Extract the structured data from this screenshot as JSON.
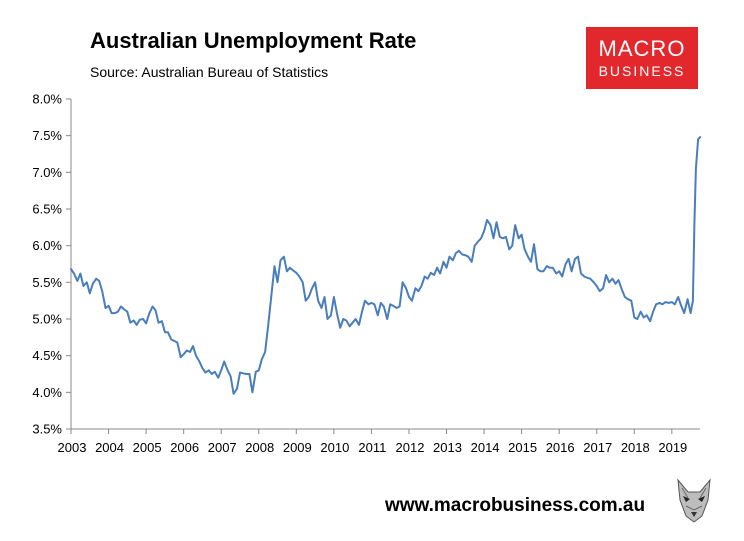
{
  "header": {
    "title": "Australian Unemployment Rate",
    "subtitle": "Source: Australian Bureau of Statistics"
  },
  "logo": {
    "line1": "MACRO",
    "line2": "BUSINESS",
    "bg_color": "#e3282d"
  },
  "footer": {
    "url": "www.macrobusiness.com.au",
    "icon": "wolf-logo-icon"
  },
  "chart_data": {
    "type": "line",
    "title": "Australian Unemployment Rate",
    "subtitle": "Source: Australian Bureau of Statistics",
    "xlabel": "",
    "ylabel": "",
    "x_tick_labels": [
      "2003",
      "2004",
      "2005",
      "2006",
      "2007",
      "2008",
      "2009",
      "2010",
      "2011",
      "2012",
      "2013",
      "2014",
      "2015",
      "2016",
      "2017",
      "2018",
      "2019"
    ],
    "y_tick_labels": [
      "3.5%",
      "4.0%",
      "4.5%",
      "5.0%",
      "5.5%",
      "6.0%",
      "6.5%",
      "7.0%",
      "7.5%",
      "8.0%"
    ],
    "ylim": [
      3.5,
      8.0
    ],
    "xlim": [
      2003.0,
      2019.75
    ],
    "grid": false,
    "legend": "none",
    "series_color": "#4a7ebb",
    "series": [
      {
        "values": [
          [
            2003.0,
            5.68
          ],
          [
            2003.08,
            5.62
          ],
          [
            2003.17,
            5.52
          ],
          [
            2003.25,
            5.62
          ],
          [
            2003.33,
            5.45
          ],
          [
            2003.42,
            5.5
          ],
          [
            2003.5,
            5.35
          ],
          [
            2003.58,
            5.48
          ],
          [
            2003.67,
            5.55
          ],
          [
            2003.75,
            5.52
          ],
          [
            2003.83,
            5.38
          ],
          [
            2003.92,
            5.15
          ],
          [
            2004.0,
            5.18
          ],
          [
            2004.08,
            5.08
          ],
          [
            2004.17,
            5.08
          ],
          [
            2004.25,
            5.1
          ],
          [
            2004.33,
            5.17
          ],
          [
            2004.42,
            5.13
          ],
          [
            2004.5,
            5.1
          ],
          [
            2004.58,
            4.95
          ],
          [
            2004.67,
            4.98
          ],
          [
            2004.75,
            4.92
          ],
          [
            2004.83,
            4.99
          ],
          [
            2004.92,
            5.0
          ],
          [
            2005.0,
            4.94
          ],
          [
            2005.08,
            5.07
          ],
          [
            2005.17,
            5.17
          ],
          [
            2005.25,
            5.12
          ],
          [
            2005.33,
            4.95
          ],
          [
            2005.42,
            4.97
          ],
          [
            2005.5,
            4.82
          ],
          [
            2005.58,
            4.82
          ],
          [
            2005.67,
            4.72
          ],
          [
            2005.75,
            4.7
          ],
          [
            2005.83,
            4.68
          ],
          [
            2005.92,
            4.48
          ],
          [
            2006.0,
            4.52
          ],
          [
            2006.08,
            4.57
          ],
          [
            2006.17,
            4.55
          ],
          [
            2006.25,
            4.63
          ],
          [
            2006.33,
            4.5
          ],
          [
            2006.42,
            4.42
          ],
          [
            2006.5,
            4.33
          ],
          [
            2006.58,
            4.27
          ],
          [
            2006.67,
            4.3
          ],
          [
            2006.75,
            4.25
          ],
          [
            2006.83,
            4.28
          ],
          [
            2006.92,
            4.2
          ],
          [
            2007.0,
            4.3
          ],
          [
            2007.08,
            4.42
          ],
          [
            2007.17,
            4.3
          ],
          [
            2007.25,
            4.22
          ],
          [
            2007.33,
            3.98
          ],
          [
            2007.42,
            4.05
          ],
          [
            2007.5,
            4.27
          ],
          [
            2007.58,
            4.26
          ],
          [
            2007.67,
            4.25
          ],
          [
            2007.75,
            4.25
          ],
          [
            2007.83,
            4.0
          ],
          [
            2007.92,
            4.28
          ],
          [
            2008.0,
            4.3
          ],
          [
            2008.08,
            4.45
          ],
          [
            2008.17,
            4.55
          ],
          [
            2008.25,
            4.9
          ],
          [
            2008.33,
            5.3
          ],
          [
            2008.42,
            5.72
          ],
          [
            2008.5,
            5.5
          ],
          [
            2008.58,
            5.8
          ],
          [
            2008.67,
            5.85
          ],
          [
            2008.75,
            5.65
          ],
          [
            2008.83,
            5.7
          ],
          [
            2008.92,
            5.66
          ],
          [
            2009.0,
            5.63
          ],
          [
            2009.08,
            5.58
          ],
          [
            2009.17,
            5.5
          ],
          [
            2009.25,
            5.25
          ],
          [
            2009.33,
            5.3
          ],
          [
            2009.42,
            5.42
          ],
          [
            2009.5,
            5.5
          ],
          [
            2009.58,
            5.25
          ],
          [
            2009.67,
            5.15
          ],
          [
            2009.75,
            5.3
          ],
          [
            2009.83,
            5.0
          ],
          [
            2009.92,
            5.05
          ],
          [
            2010.0,
            5.3
          ],
          [
            2010.08,
            5.08
          ],
          [
            2010.17,
            4.88
          ],
          [
            2010.25,
            5.0
          ],
          [
            2010.33,
            4.98
          ],
          [
            2010.42,
            4.9
          ],
          [
            2010.5,
            4.95
          ],
          [
            2010.58,
            5.0
          ],
          [
            2010.67,
            4.92
          ],
          [
            2010.75,
            5.1
          ],
          [
            2010.83,
            5.25
          ],
          [
            2010.92,
            5.2
          ],
          [
            2011.0,
            5.22
          ],
          [
            2011.08,
            5.2
          ],
          [
            2011.17,
            5.05
          ],
          [
            2011.25,
            5.22
          ],
          [
            2011.33,
            5.17
          ],
          [
            2011.42,
            5.0
          ],
          [
            2011.5,
            5.2
          ],
          [
            2011.58,
            5.18
          ],
          [
            2011.67,
            5.15
          ],
          [
            2011.75,
            5.17
          ],
          [
            2011.83,
            5.5
          ],
          [
            2011.92,
            5.42
          ],
          [
            2012.0,
            5.3
          ],
          [
            2012.08,
            5.25
          ],
          [
            2012.17,
            5.42
          ],
          [
            2012.25,
            5.38
          ],
          [
            2012.33,
            5.45
          ],
          [
            2012.42,
            5.58
          ],
          [
            2012.5,
            5.55
          ],
          [
            2012.58,
            5.63
          ],
          [
            2012.67,
            5.6
          ],
          [
            2012.75,
            5.7
          ],
          [
            2012.83,
            5.62
          ],
          [
            2012.92,
            5.78
          ],
          [
            2013.0,
            5.7
          ],
          [
            2013.08,
            5.85
          ],
          [
            2013.17,
            5.8
          ],
          [
            2013.25,
            5.9
          ],
          [
            2013.33,
            5.93
          ],
          [
            2013.42,
            5.88
          ],
          [
            2013.5,
            5.87
          ],
          [
            2013.58,
            5.85
          ],
          [
            2013.67,
            5.78
          ],
          [
            2013.75,
            6.0
          ],
          [
            2013.83,
            6.05
          ],
          [
            2013.92,
            6.1
          ],
          [
            2014.0,
            6.2
          ],
          [
            2014.08,
            6.35
          ],
          [
            2014.17,
            6.28
          ],
          [
            2014.25,
            6.1
          ],
          [
            2014.33,
            6.32
          ],
          [
            2014.42,
            6.12
          ],
          [
            2014.5,
            6.1
          ],
          [
            2014.58,
            6.12
          ],
          [
            2014.67,
            5.95
          ],
          [
            2014.75,
            6.0
          ],
          [
            2014.83,
            6.28
          ],
          [
            2014.92,
            6.1
          ],
          [
            2015.0,
            6.15
          ],
          [
            2015.08,
            5.95
          ],
          [
            2015.17,
            5.85
          ],
          [
            2015.25,
            5.78
          ],
          [
            2015.33,
            6.02
          ],
          [
            2015.42,
            5.68
          ],
          [
            2015.5,
            5.65
          ],
          [
            2015.58,
            5.65
          ],
          [
            2015.67,
            5.72
          ],
          [
            2015.75,
            5.7
          ],
          [
            2015.83,
            5.7
          ],
          [
            2015.92,
            5.62
          ],
          [
            2016.0,
            5.65
          ],
          [
            2016.08,
            5.58
          ],
          [
            2016.17,
            5.75
          ],
          [
            2016.25,
            5.82
          ],
          [
            2016.33,
            5.65
          ],
          [
            2016.42,
            5.82
          ],
          [
            2016.5,
            5.85
          ],
          [
            2016.58,
            5.62
          ],
          [
            2016.67,
            5.58
          ],
          [
            2016.75,
            5.56
          ],
          [
            2016.83,
            5.55
          ],
          [
            2016.92,
            5.5
          ],
          [
            2017.0,
            5.45
          ],
          [
            2017.08,
            5.38
          ],
          [
            2017.17,
            5.42
          ],
          [
            2017.25,
            5.6
          ],
          [
            2017.33,
            5.5
          ],
          [
            2017.42,
            5.55
          ],
          [
            2017.5,
            5.48
          ],
          [
            2017.58,
            5.53
          ],
          [
            2017.67,
            5.4
          ],
          [
            2017.75,
            5.3
          ],
          [
            2017.83,
            5.27
          ],
          [
            2017.92,
            5.25
          ],
          [
            2018.0,
            5.02
          ],
          [
            2018.08,
            5.0
          ],
          [
            2018.17,
            5.1
          ],
          [
            2018.25,
            5.02
          ],
          [
            2018.33,
            5.05
          ],
          [
            2018.42,
            4.97
          ],
          [
            2018.5,
            5.1
          ],
          [
            2018.58,
            5.2
          ],
          [
            2018.67,
            5.22
          ],
          [
            2018.75,
            5.2
          ],
          [
            2018.83,
            5.23
          ],
          [
            2018.92,
            5.22
          ],
          [
            2019.0,
            5.23
          ],
          [
            2019.08,
            5.2
          ],
          [
            2019.17,
            5.3
          ],
          [
            2019.25,
            5.18
          ],
          [
            2019.33,
            5.08
          ],
          [
            2019.42,
            5.27
          ],
          [
            2019.5,
            5.08
          ],
          [
            2019.56,
            5.25
          ],
          [
            2019.6,
            6.3
          ],
          [
            2019.64,
            7.05
          ],
          [
            2019.7,
            7.45
          ],
          [
            2019.75,
            7.48
          ]
        ]
      }
    ]
  }
}
